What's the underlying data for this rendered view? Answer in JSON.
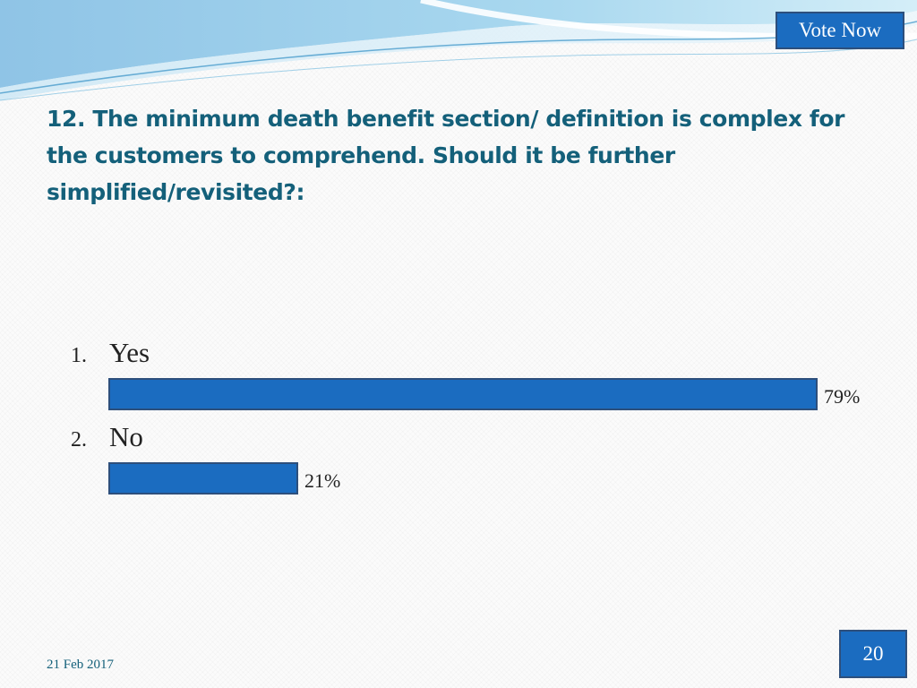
{
  "header": {
    "vote_button_label": "Vote Now"
  },
  "question": "12. The minimum death benefit section/ definition is complex for the customers to comprehend.  Should it be further simplified/revisited?:",
  "chart_data": {
    "type": "bar",
    "orientation": "horizontal",
    "categories": [
      "Yes",
      "No"
    ],
    "item_numbers": [
      "1.",
      "2."
    ],
    "values": [
      79,
      21
    ],
    "value_labels": [
      "79%",
      "21%"
    ],
    "unit": "%",
    "xlim": [
      0,
      79
    ],
    "grid": false,
    "legend": "none",
    "bar_color": "#1b6cc0",
    "bar_border_color": "#2d4f7c"
  },
  "footer": {
    "date": "21 Feb 2017",
    "page_number": "20"
  }
}
